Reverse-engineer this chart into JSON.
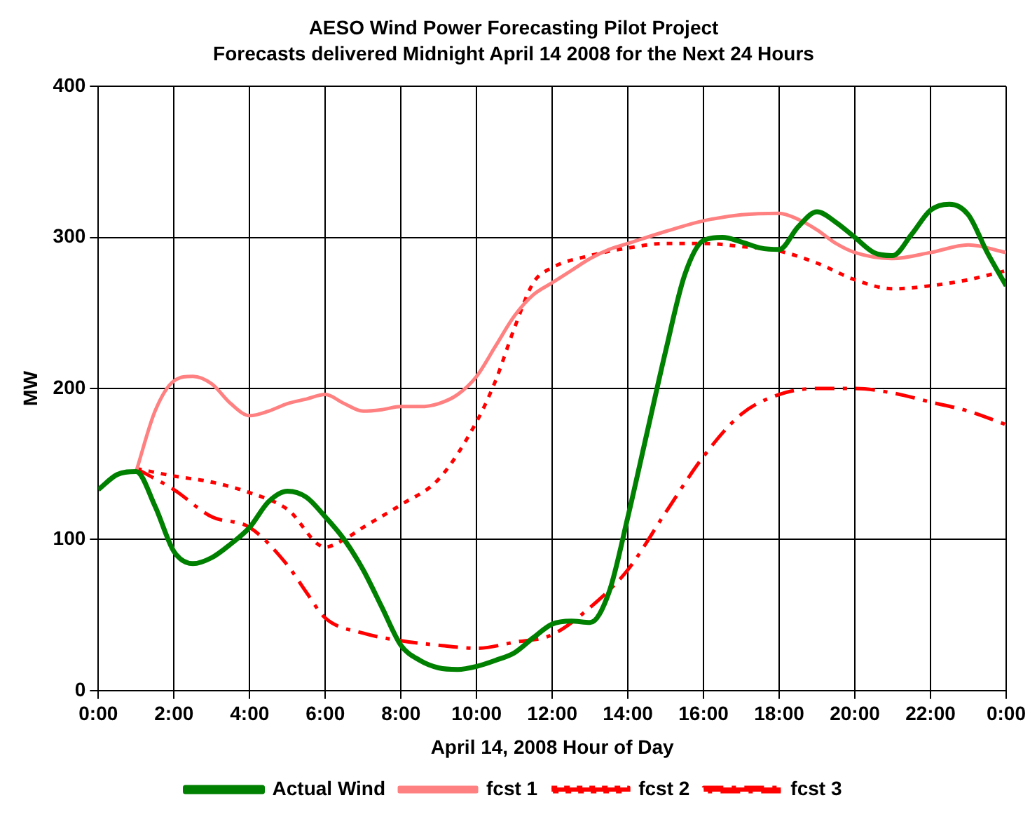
{
  "chart_data": {
    "type": "line",
    "title": "AESO Wind Power Forecasting Pilot Project",
    "subtitle": "Forecasts delivered Midnight April 14 2008 for the Next 24 Hours",
    "xlabel": "April 14, 2008 Hour of Day",
    "ylabel": "MW",
    "xlim": [
      0,
      24
    ],
    "xticks": [
      {
        "value": 0,
        "label": "0:00"
      },
      {
        "value": 2,
        "label": "2:00"
      },
      {
        "value": 4,
        "label": "4:00"
      },
      {
        "value": 6,
        "label": "6:00"
      },
      {
        "value": 8,
        "label": "8:00"
      },
      {
        "value": 10,
        "label": "10:00"
      },
      {
        "value": 12,
        "label": "12:00"
      },
      {
        "value": 14,
        "label": "14:00"
      },
      {
        "value": 16,
        "label": "16:00"
      },
      {
        "value": 18,
        "label": "18:00"
      },
      {
        "value": 20,
        "label": "20:00"
      },
      {
        "value": 22,
        "label": "22:00"
      },
      {
        "value": 24,
        "label": "0:00"
      }
    ],
    "ylim": [
      0,
      400
    ],
    "yticks": [
      0,
      100,
      200,
      300,
      400
    ],
    "grid": true,
    "legend": "bottom",
    "marker": "none",
    "series": [
      {
        "name": "Actual Wind",
        "color": "#008000",
        "line_style": "solid",
        "x": [
          0,
          0.5,
          1,
          1.5,
          2,
          2.5,
          3,
          3.5,
          4,
          4.5,
          5,
          5.5,
          6,
          6.5,
          7,
          7.5,
          8,
          8.5,
          9,
          9.5,
          10,
          10.5,
          11,
          11.5,
          12,
          12.5,
          13,
          13.5,
          14,
          14.5,
          15,
          15.5,
          16,
          16.5,
          17,
          17.5,
          18,
          18.5,
          19,
          19.5,
          20,
          20.5,
          21,
          21.5,
          22,
          22.5,
          23,
          23.5,
          24
        ],
        "values": [
          133,
          143,
          145,
          122,
          92,
          84,
          88,
          97,
          108,
          125,
          132,
          128,
          115,
          100,
          80,
          55,
          30,
          20,
          15,
          14,
          16,
          20,
          25,
          35,
          44,
          46,
          45,
          65,
          115,
          170,
          225,
          275,
          298,
          300,
          297,
          293,
          292,
          307,
          317,
          310,
          300,
          290,
          288,
          302,
          318,
          322,
          315,
          290,
          268
        ]
      },
      {
        "name": "fcst 1",
        "color": "#ff8080",
        "line_style": "solid",
        "x": [
          1,
          1.5,
          2,
          2.5,
          3,
          3.5,
          4,
          4.5,
          5,
          5.5,
          6,
          6.5,
          7,
          7.5,
          8,
          8.5,
          9,
          9.5,
          10,
          10.5,
          11,
          11.5,
          12,
          12.5,
          13,
          13.5,
          14,
          15,
          16,
          17,
          18,
          18.5,
          19,
          19.5,
          20,
          21,
          22,
          23,
          24
        ],
        "values": [
          145,
          185,
          205,
          208,
          203,
          190,
          182,
          185,
          190,
          193,
          196,
          190,
          185,
          186,
          188,
          188,
          190,
          196,
          208,
          228,
          248,
          262,
          270,
          278,
          286,
          292,
          296,
          304,
          311,
          315,
          316,
          312,
          305,
          296,
          290,
          286,
          290,
          295,
          290
        ]
      },
      {
        "name": "fcst 2",
        "color": "#ff0000",
        "line_style": "dotted",
        "x": [
          1,
          2,
          3,
          4,
          5,
          6,
          6.5,
          7,
          8,
          9,
          10,
          10.5,
          11,
          11.5,
          12,
          13,
          14,
          15,
          16,
          17,
          18,
          19,
          20,
          21,
          22,
          23,
          24
        ],
        "values": [
          147,
          142,
          138,
          131,
          120,
          95,
          100,
          108,
          123,
          140,
          178,
          205,
          240,
          270,
          280,
          288,
          293,
          296,
          296,
          294,
          291,
          283,
          272,
          266,
          268,
          272,
          278
        ]
      },
      {
        "name": "fcst 3",
        "color": "#ff0000",
        "line_style": "dashed",
        "x": [
          1,
          2,
          3,
          4,
          5,
          5.5,
          6,
          7,
          8,
          9,
          10,
          11,
          12,
          13,
          14,
          15,
          16,
          17,
          18,
          19,
          20,
          21,
          22,
          23,
          24
        ],
        "values": [
          147,
          133,
          115,
          108,
          83,
          65,
          48,
          38,
          33,
          30,
          28,
          32,
          37,
          55,
          80,
          118,
          155,
          183,
          196,
          200,
          200,
          197,
          191,
          185,
          176
        ]
      }
    ]
  }
}
